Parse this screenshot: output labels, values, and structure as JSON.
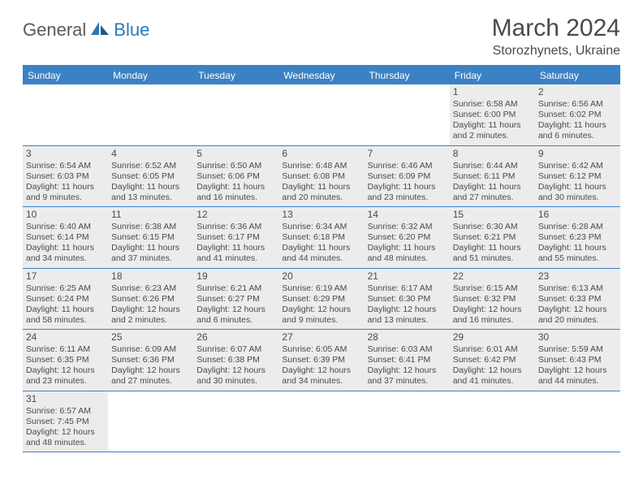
{
  "logo": {
    "text1": "General",
    "text2": "Blue"
  },
  "title": "March 2024",
  "location": "Storozhynets, Ukraine",
  "colors": {
    "header_bg": "#3b82c4",
    "header_text": "#ffffff",
    "cell_filled_bg": "#ececec",
    "border": "#3b82c4",
    "text": "#4a4a4a"
  },
  "day_names": [
    "Sunday",
    "Monday",
    "Tuesday",
    "Wednesday",
    "Thursday",
    "Friday",
    "Saturday"
  ],
  "weeks": [
    [
      {
        "day": "",
        "sunrise": "",
        "sunset": "",
        "daylight1": "",
        "daylight2": ""
      },
      {
        "day": "",
        "sunrise": "",
        "sunset": "",
        "daylight1": "",
        "daylight2": ""
      },
      {
        "day": "",
        "sunrise": "",
        "sunset": "",
        "daylight1": "",
        "daylight2": ""
      },
      {
        "day": "",
        "sunrise": "",
        "sunset": "",
        "daylight1": "",
        "daylight2": ""
      },
      {
        "day": "",
        "sunrise": "",
        "sunset": "",
        "daylight1": "",
        "daylight2": ""
      },
      {
        "day": "1",
        "sunrise": "Sunrise: 6:58 AM",
        "sunset": "Sunset: 6:00 PM",
        "daylight1": "Daylight: 11 hours",
        "daylight2": "and 2 minutes."
      },
      {
        "day": "2",
        "sunrise": "Sunrise: 6:56 AM",
        "sunset": "Sunset: 6:02 PM",
        "daylight1": "Daylight: 11 hours",
        "daylight2": "and 6 minutes."
      }
    ],
    [
      {
        "day": "3",
        "sunrise": "Sunrise: 6:54 AM",
        "sunset": "Sunset: 6:03 PM",
        "daylight1": "Daylight: 11 hours",
        "daylight2": "and 9 minutes."
      },
      {
        "day": "4",
        "sunrise": "Sunrise: 6:52 AM",
        "sunset": "Sunset: 6:05 PM",
        "daylight1": "Daylight: 11 hours",
        "daylight2": "and 13 minutes."
      },
      {
        "day": "5",
        "sunrise": "Sunrise: 6:50 AM",
        "sunset": "Sunset: 6:06 PM",
        "daylight1": "Daylight: 11 hours",
        "daylight2": "and 16 minutes."
      },
      {
        "day": "6",
        "sunrise": "Sunrise: 6:48 AM",
        "sunset": "Sunset: 6:08 PM",
        "daylight1": "Daylight: 11 hours",
        "daylight2": "and 20 minutes."
      },
      {
        "day": "7",
        "sunrise": "Sunrise: 6:46 AM",
        "sunset": "Sunset: 6:09 PM",
        "daylight1": "Daylight: 11 hours",
        "daylight2": "and 23 minutes."
      },
      {
        "day": "8",
        "sunrise": "Sunrise: 6:44 AM",
        "sunset": "Sunset: 6:11 PM",
        "daylight1": "Daylight: 11 hours",
        "daylight2": "and 27 minutes."
      },
      {
        "day": "9",
        "sunrise": "Sunrise: 6:42 AM",
        "sunset": "Sunset: 6:12 PM",
        "daylight1": "Daylight: 11 hours",
        "daylight2": "and 30 minutes."
      }
    ],
    [
      {
        "day": "10",
        "sunrise": "Sunrise: 6:40 AM",
        "sunset": "Sunset: 6:14 PM",
        "daylight1": "Daylight: 11 hours",
        "daylight2": "and 34 minutes."
      },
      {
        "day": "11",
        "sunrise": "Sunrise: 6:38 AM",
        "sunset": "Sunset: 6:15 PM",
        "daylight1": "Daylight: 11 hours",
        "daylight2": "and 37 minutes."
      },
      {
        "day": "12",
        "sunrise": "Sunrise: 6:36 AM",
        "sunset": "Sunset: 6:17 PM",
        "daylight1": "Daylight: 11 hours",
        "daylight2": "and 41 minutes."
      },
      {
        "day": "13",
        "sunrise": "Sunrise: 6:34 AM",
        "sunset": "Sunset: 6:18 PM",
        "daylight1": "Daylight: 11 hours",
        "daylight2": "and 44 minutes."
      },
      {
        "day": "14",
        "sunrise": "Sunrise: 6:32 AM",
        "sunset": "Sunset: 6:20 PM",
        "daylight1": "Daylight: 11 hours",
        "daylight2": "and 48 minutes."
      },
      {
        "day": "15",
        "sunrise": "Sunrise: 6:30 AM",
        "sunset": "Sunset: 6:21 PM",
        "daylight1": "Daylight: 11 hours",
        "daylight2": "and 51 minutes."
      },
      {
        "day": "16",
        "sunrise": "Sunrise: 6:28 AM",
        "sunset": "Sunset: 6:23 PM",
        "daylight1": "Daylight: 11 hours",
        "daylight2": "and 55 minutes."
      }
    ],
    [
      {
        "day": "17",
        "sunrise": "Sunrise: 6:25 AM",
        "sunset": "Sunset: 6:24 PM",
        "daylight1": "Daylight: 11 hours",
        "daylight2": "and 58 minutes."
      },
      {
        "day": "18",
        "sunrise": "Sunrise: 6:23 AM",
        "sunset": "Sunset: 6:26 PM",
        "daylight1": "Daylight: 12 hours",
        "daylight2": "and 2 minutes."
      },
      {
        "day": "19",
        "sunrise": "Sunrise: 6:21 AM",
        "sunset": "Sunset: 6:27 PM",
        "daylight1": "Daylight: 12 hours",
        "daylight2": "and 6 minutes."
      },
      {
        "day": "20",
        "sunrise": "Sunrise: 6:19 AM",
        "sunset": "Sunset: 6:29 PM",
        "daylight1": "Daylight: 12 hours",
        "daylight2": "and 9 minutes."
      },
      {
        "day": "21",
        "sunrise": "Sunrise: 6:17 AM",
        "sunset": "Sunset: 6:30 PM",
        "daylight1": "Daylight: 12 hours",
        "daylight2": "and 13 minutes."
      },
      {
        "day": "22",
        "sunrise": "Sunrise: 6:15 AM",
        "sunset": "Sunset: 6:32 PM",
        "daylight1": "Daylight: 12 hours",
        "daylight2": "and 16 minutes."
      },
      {
        "day": "23",
        "sunrise": "Sunrise: 6:13 AM",
        "sunset": "Sunset: 6:33 PM",
        "daylight1": "Daylight: 12 hours",
        "daylight2": "and 20 minutes."
      }
    ],
    [
      {
        "day": "24",
        "sunrise": "Sunrise: 6:11 AM",
        "sunset": "Sunset: 6:35 PM",
        "daylight1": "Daylight: 12 hours",
        "daylight2": "and 23 minutes."
      },
      {
        "day": "25",
        "sunrise": "Sunrise: 6:09 AM",
        "sunset": "Sunset: 6:36 PM",
        "daylight1": "Daylight: 12 hours",
        "daylight2": "and 27 minutes."
      },
      {
        "day": "26",
        "sunrise": "Sunrise: 6:07 AM",
        "sunset": "Sunset: 6:38 PM",
        "daylight1": "Daylight: 12 hours",
        "daylight2": "and 30 minutes."
      },
      {
        "day": "27",
        "sunrise": "Sunrise: 6:05 AM",
        "sunset": "Sunset: 6:39 PM",
        "daylight1": "Daylight: 12 hours",
        "daylight2": "and 34 minutes."
      },
      {
        "day": "28",
        "sunrise": "Sunrise: 6:03 AM",
        "sunset": "Sunset: 6:41 PM",
        "daylight1": "Daylight: 12 hours",
        "daylight2": "and 37 minutes."
      },
      {
        "day": "29",
        "sunrise": "Sunrise: 6:01 AM",
        "sunset": "Sunset: 6:42 PM",
        "daylight1": "Daylight: 12 hours",
        "daylight2": "and 41 minutes."
      },
      {
        "day": "30",
        "sunrise": "Sunrise: 5:59 AM",
        "sunset": "Sunset: 6:43 PM",
        "daylight1": "Daylight: 12 hours",
        "daylight2": "and 44 minutes."
      }
    ],
    [
      {
        "day": "31",
        "sunrise": "Sunrise: 6:57 AM",
        "sunset": "Sunset: 7:45 PM",
        "daylight1": "Daylight: 12 hours",
        "daylight2": "and 48 minutes."
      },
      {
        "day": "",
        "sunrise": "",
        "sunset": "",
        "daylight1": "",
        "daylight2": ""
      },
      {
        "day": "",
        "sunrise": "",
        "sunset": "",
        "daylight1": "",
        "daylight2": ""
      },
      {
        "day": "",
        "sunrise": "",
        "sunset": "",
        "daylight1": "",
        "daylight2": ""
      },
      {
        "day": "",
        "sunrise": "",
        "sunset": "",
        "daylight1": "",
        "daylight2": ""
      },
      {
        "day": "",
        "sunrise": "",
        "sunset": "",
        "daylight1": "",
        "daylight2": ""
      },
      {
        "day": "",
        "sunrise": "",
        "sunset": "",
        "daylight1": "",
        "daylight2": ""
      }
    ]
  ]
}
